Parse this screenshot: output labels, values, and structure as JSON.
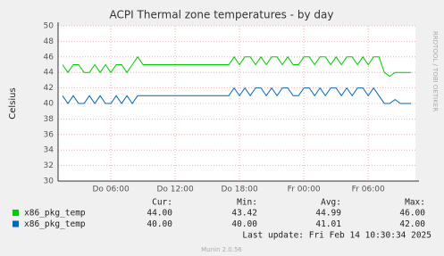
{
  "chart_data": {
    "type": "line",
    "title": "ACPI Thermal zone temperatures - by day",
    "y_label": "Celsius",
    "side_label": "RRDTOOL / TOBI OETIKER",
    "x": [
      1.5,
      2,
      2.5,
      3,
      3.5,
      4,
      4.5,
      5,
      5.5,
      6,
      6.5,
      7,
      7.5,
      8,
      8.5,
      9,
      9.5,
      10,
      10.5,
      11,
      11.5,
      12,
      12.5,
      13,
      13.5,
      14,
      14.5,
      15,
      15.5,
      16,
      16.5,
      17,
      17.5,
      18,
      18.5,
      19,
      19.5,
      20,
      20.5,
      21,
      21.5,
      22,
      22.5,
      23,
      23.5,
      24,
      24.5,
      25,
      25.5,
      26,
      26.5,
      27,
      27.5,
      28,
      28.5,
      29,
      29.5,
      30,
      30.5,
      31,
      31.5,
      32,
      32.5,
      33,
      33.5,
      34
    ],
    "xlim": [
      1.08,
      34.4
    ],
    "xticks": [
      {
        "value": 6,
        "label": "Do 06:00"
      },
      {
        "value": 12,
        "label": "Do 12:00"
      },
      {
        "value": 18,
        "label": "Do 18:00"
      },
      {
        "value": 24,
        "label": "Fr 00:00"
      },
      {
        "value": 30,
        "label": "Fr 06:00"
      }
    ],
    "ylim": [
      30,
      50
    ],
    "yticks": [
      30,
      32,
      34,
      36,
      38,
      40,
      42,
      44,
      46,
      48,
      50
    ],
    "grid": true,
    "stats_headers": [
      "Cur:",
      "Min:",
      "Avg:",
      "Max:"
    ],
    "series": [
      {
        "name": "x86_pkg_temp",
        "color": "#00cc00",
        "stats": [
          "44.00",
          "43.42",
          "44.99",
          "46.00"
        ],
        "values": [
          45,
          44,
          45,
          45,
          44,
          44,
          45,
          44,
          45,
          44,
          45,
          45,
          44,
          45,
          46,
          45,
          45,
          45,
          45,
          45,
          45,
          45,
          45,
          45,
          45,
          45,
          45,
          45,
          45,
          45,
          45,
          45,
          46,
          45,
          46,
          46,
          45,
          46,
          45,
          46,
          46,
          45,
          46,
          45,
          45,
          46,
          46,
          45,
          46,
          46,
          45,
          46,
          45,
          46,
          46,
          45,
          46,
          45,
          46,
          46,
          44,
          43.5,
          44,
          44,
          44,
          44
        ]
      },
      {
        "name": "x86_pkg_temp",
        "color": "#0066b3",
        "stats": [
          "40.00",
          "40.00",
          "41.01",
          "42.00"
        ],
        "values": [
          41,
          40,
          41,
          40,
          40,
          41,
          40,
          41,
          40,
          40,
          41,
          40,
          41,
          40,
          41,
          41,
          41,
          41,
          41,
          41,
          41,
          41,
          41,
          41,
          41,
          41,
          41,
          41,
          41,
          41,
          41,
          41,
          42,
          41,
          42,
          41,
          42,
          42,
          41,
          42,
          41,
          42,
          42,
          41,
          41,
          42,
          42,
          41,
          42,
          41,
          42,
          42,
          41,
          42,
          41,
          42,
          42,
          41,
          42,
          41,
          40,
          40,
          40.5,
          40,
          40,
          40
        ]
      }
    ],
    "last_update": "Last update: Fri Feb 14 10:30:34 2025",
    "footer": "Munin 2.0.56"
  }
}
